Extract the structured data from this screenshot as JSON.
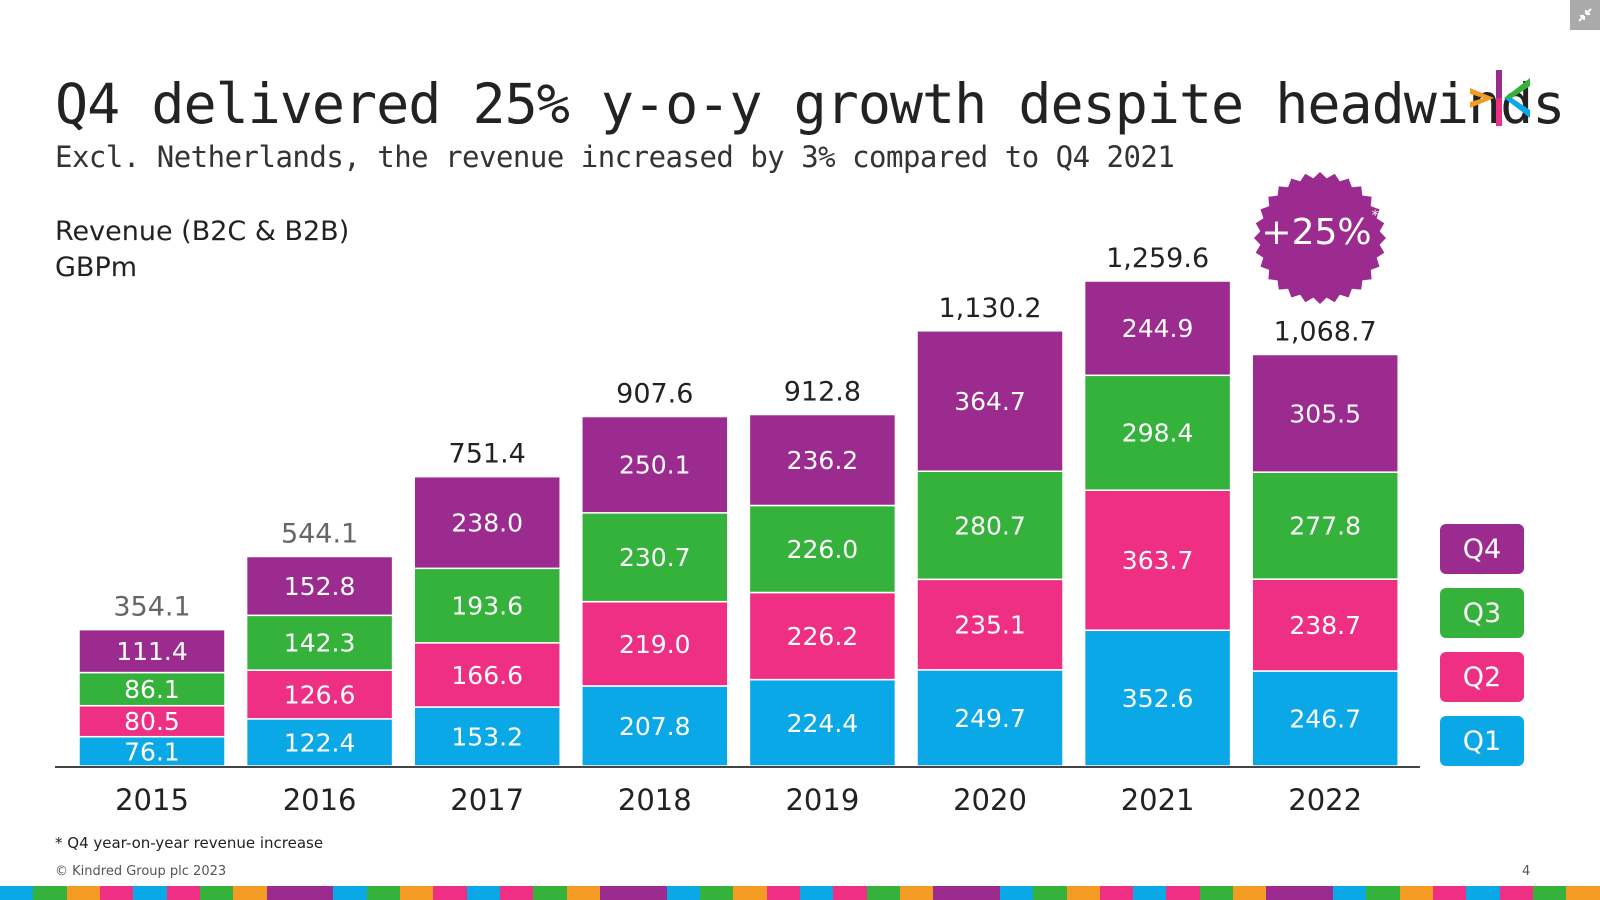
{
  "slide": {
    "title": "Q4 delivered 25% y-o-y growth despite headwinds",
    "subtitle": "Excl. Netherlands, the revenue increased by 3% compared to Q4 2021",
    "ylabel_line1": "Revenue (B2C & B2B)",
    "ylabel_line2": "GBPm",
    "badge": "+25%",
    "badge_mark": "*",
    "footnote": "* Q4 year-on-year revenue increase",
    "copyright": "© Kindred Group plc 2023",
    "page_number": "4"
  },
  "colors": {
    "Q1": "#0aa8e6",
    "Q2": "#ee2f84",
    "Q3": "#35b23b",
    "Q4": "#9b2b8f",
    "axis": "#444444",
    "stripe": [
      "#0aa8e6",
      "#ee2f84",
      "#35b23b",
      "#9b2b8f",
      "#f39b23",
      "#ee2f84",
      "#9b2b8f",
      "#35b23b",
      "#0aa8e6",
      "#f39b23"
    ]
  },
  "chart_data": {
    "type": "bar",
    "stacked": true,
    "categories": [
      "2015",
      "2016",
      "2017",
      "2018",
      "2019",
      "2020",
      "2021",
      "2022"
    ],
    "series": [
      {
        "name": "Q1",
        "values": [
          76.1,
          122.4,
          153.2,
          207.8,
          224.4,
          249.7,
          352.6,
          246.7
        ]
      },
      {
        "name": "Q2",
        "values": [
          80.5,
          126.6,
          166.6,
          219.0,
          226.2,
          235.1,
          363.7,
          238.7
        ]
      },
      {
        "name": "Q3",
        "values": [
          86.1,
          142.3,
          193.6,
          230.7,
          226.0,
          280.7,
          298.4,
          277.8
        ]
      },
      {
        "name": "Q4",
        "values": [
          111.4,
          152.8,
          238.0,
          250.1,
          236.2,
          364.7,
          244.9,
          305.5
        ]
      }
    ],
    "segment_labels": [
      [
        "76.1",
        "80.5",
        "86.1",
        "111.4"
      ],
      [
        "122.4",
        "126.6",
        "142.3",
        "152.8"
      ],
      [
        "153.2",
        "166.6",
        "193.6",
        "238.0"
      ],
      [
        "207.8",
        "219.0",
        "230.7",
        "250.1"
      ],
      [
        "224.4",
        "226.2",
        "226.0",
        "236.2"
      ],
      [
        "249.7",
        "235.1",
        "280.7",
        "364.7"
      ],
      [
        "352.6",
        "363.7",
        "298.4",
        "244.9"
      ],
      [
        "246.7",
        "238.7",
        "277.8",
        "305.5"
      ]
    ],
    "total_labels": [
      "354.1",
      "544.1",
      "751.4",
      "907.6",
      "912.8",
      "1,130.2",
      "1,259.6",
      "1,068.7"
    ],
    "legend": [
      "Q4",
      "Q3",
      "Q2",
      "Q1"
    ],
    "legend_position": "right",
    "grid": false
  }
}
